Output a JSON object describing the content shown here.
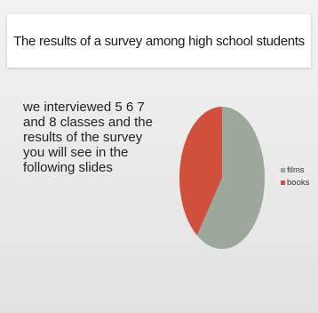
{
  "slide": {
    "title": "The results of a survey among high school students",
    "body": "we interviewed 5 6 7 and 8 classes and the results of the survey you will see in the following slides"
  },
  "chart_data": {
    "type": "pie",
    "categories": [
      "films",
      "books"
    ],
    "values": [
      60,
      40
    ],
    "colors": [
      "#9ba89b",
      "#d0503d"
    ],
    "legend_position": "right"
  }
}
